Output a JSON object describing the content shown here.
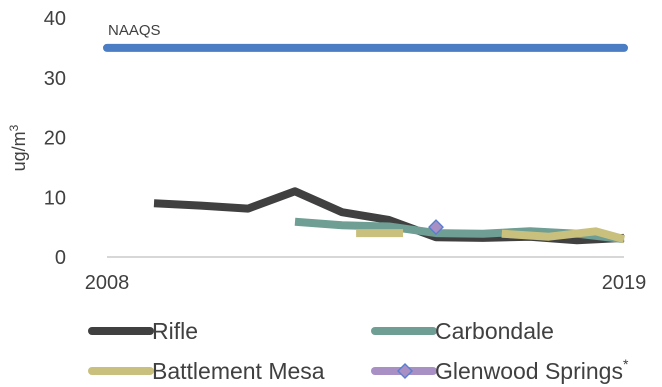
{
  "chart_data": {
    "type": "line",
    "ylabel": "ug/m",
    "ylabel_superscript": "3",
    "ylim": [
      0,
      40
    ],
    "yticks": [
      "0",
      "10",
      "20",
      "30",
      "40"
    ],
    "x_range": [
      2008,
      2019
    ],
    "xticks": [
      "2008",
      "2019"
    ],
    "grid": false,
    "legend_position": "bottom",
    "reference_line": {
      "name": "NAAQS",
      "value": 35,
      "x": [
        2008,
        2019
      ],
      "color": "#4a7dc4"
    },
    "series": [
      {
        "name": "Rifle",
        "color": "#404040",
        "marker": "none",
        "points": [
          [
            2009,
            9
          ],
          [
            2010,
            8.6
          ],
          [
            2011,
            8.1
          ],
          [
            2012,
            11
          ],
          [
            2013,
            7.5
          ],
          [
            2014,
            6.2
          ],
          [
            2015,
            3.3
          ],
          [
            2016,
            3.2
          ],
          [
            2017,
            3.4
          ],
          [
            2018,
            2.8
          ],
          [
            2019,
            3.2
          ]
        ]
      },
      {
        "name": "Carbondale",
        "color": "#6e9e94",
        "marker": "none",
        "points": [
          [
            2012,
            5.9
          ],
          [
            2013,
            5.3
          ],
          [
            2014,
            5.1
          ],
          [
            2015,
            4
          ],
          [
            2016,
            3.9
          ],
          [
            2017,
            4.3
          ],
          [
            2018,
            3.9
          ],
          [
            2019,
            3
          ]
        ]
      },
      {
        "name": "Battlement Mesa",
        "color": "#c9c07e",
        "marker": "none",
        "points": [
          [
            2013.3,
            4
          ],
          [
            2014.3,
            4
          ],
          [
            null,
            null
          ],
          [
            2016.4,
            3.9
          ],
          [
            2017.4,
            3.4
          ],
          [
            2018.4,
            4.3
          ],
          [
            2019,
            3
          ]
        ]
      },
      {
        "name": "Glenwood Springs",
        "name_suffix": "*",
        "color": "#a88fc4",
        "marker": "diamond",
        "marker_stroke": "#5a7fd0",
        "points": [
          [
            2015,
            5
          ]
        ]
      }
    ]
  }
}
